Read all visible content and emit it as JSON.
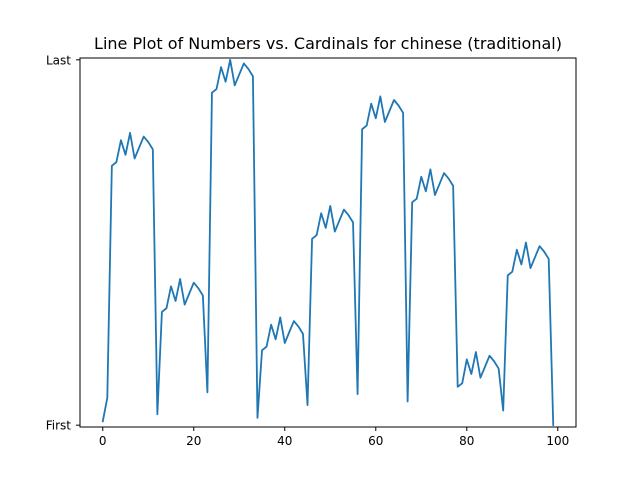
{
  "chart_data": {
    "type": "line",
    "title": "Line Plot of Numbers vs. Cardinals for chinese (traditional)",
    "xlabel": "",
    "ylabel": "",
    "xlim": [
      -5.0,
      104.0
    ],
    "ylim": [
      -0.5,
      100.5
    ],
    "x_ticks": [
      0,
      20,
      40,
      60,
      80,
      100
    ],
    "y_ticks": [
      {
        "value": 0,
        "label": "First"
      },
      {
        "value": 100,
        "label": "Last"
      }
    ],
    "grid": false,
    "legend": "none",
    "series": [
      {
        "color": "#1f77b4",
        "x": [
          0,
          1,
          2,
          3,
          4,
          5,
          6,
          7,
          8,
          9,
          10,
          11,
          12,
          13,
          14,
          15,
          16,
          17,
          18,
          19,
          20,
          21,
          22,
          23,
          24,
          25,
          26,
          27,
          28,
          29,
          30,
          31,
          32,
          33,
          34,
          35,
          36,
          37,
          38,
          39,
          40,
          41,
          42,
          43,
          44,
          45,
          46,
          47,
          48,
          49,
          50,
          51,
          52,
          53,
          54,
          55,
          56,
          57,
          58,
          59,
          60,
          61,
          62,
          63,
          64,
          65,
          66,
          67,
          68,
          69,
          70,
          71,
          72,
          73,
          74,
          75,
          76,
          77,
          78,
          79,
          80,
          81,
          82,
          83,
          84,
          85,
          86,
          87,
          88,
          89,
          90,
          91,
          92,
          93,
          94,
          95,
          96,
          97,
          98,
          99
        ],
        "y": [
          1,
          7.5,
          71,
          72,
          78,
          74,
          80,
          73,
          76,
          79,
          77.5,
          75.5,
          3,
          31,
          32,
          38,
          34,
          40,
          33,
          36,
          39,
          37.5,
          35.5,
          9,
          91,
          92,
          98,
          94,
          100,
          93,
          96,
          99,
          97.5,
          95.5,
          2,
          20.5,
          21.5,
          27.5,
          23.5,
          29.5,
          22.5,
          25.5,
          28.5,
          27,
          25,
          5.5,
          51,
          52,
          58,
          54,
          60,
          53,
          56,
          59,
          57.5,
          55.5,
          8.5,
          81,
          82,
          88,
          84,
          90,
          83,
          86,
          89,
          87.5,
          85.5,
          6.5,
          61,
          62,
          68,
          64,
          70,
          63,
          66,
          69,
          67.5,
          65.5,
          10.5,
          11.5,
          18,
          14,
          20,
          13,
          16,
          19,
          17.5,
          15.5,
          4,
          41,
          42,
          48,
          44,
          50,
          43,
          46,
          49,
          47.5,
          45.5,
          0
        ]
      }
    ]
  }
}
